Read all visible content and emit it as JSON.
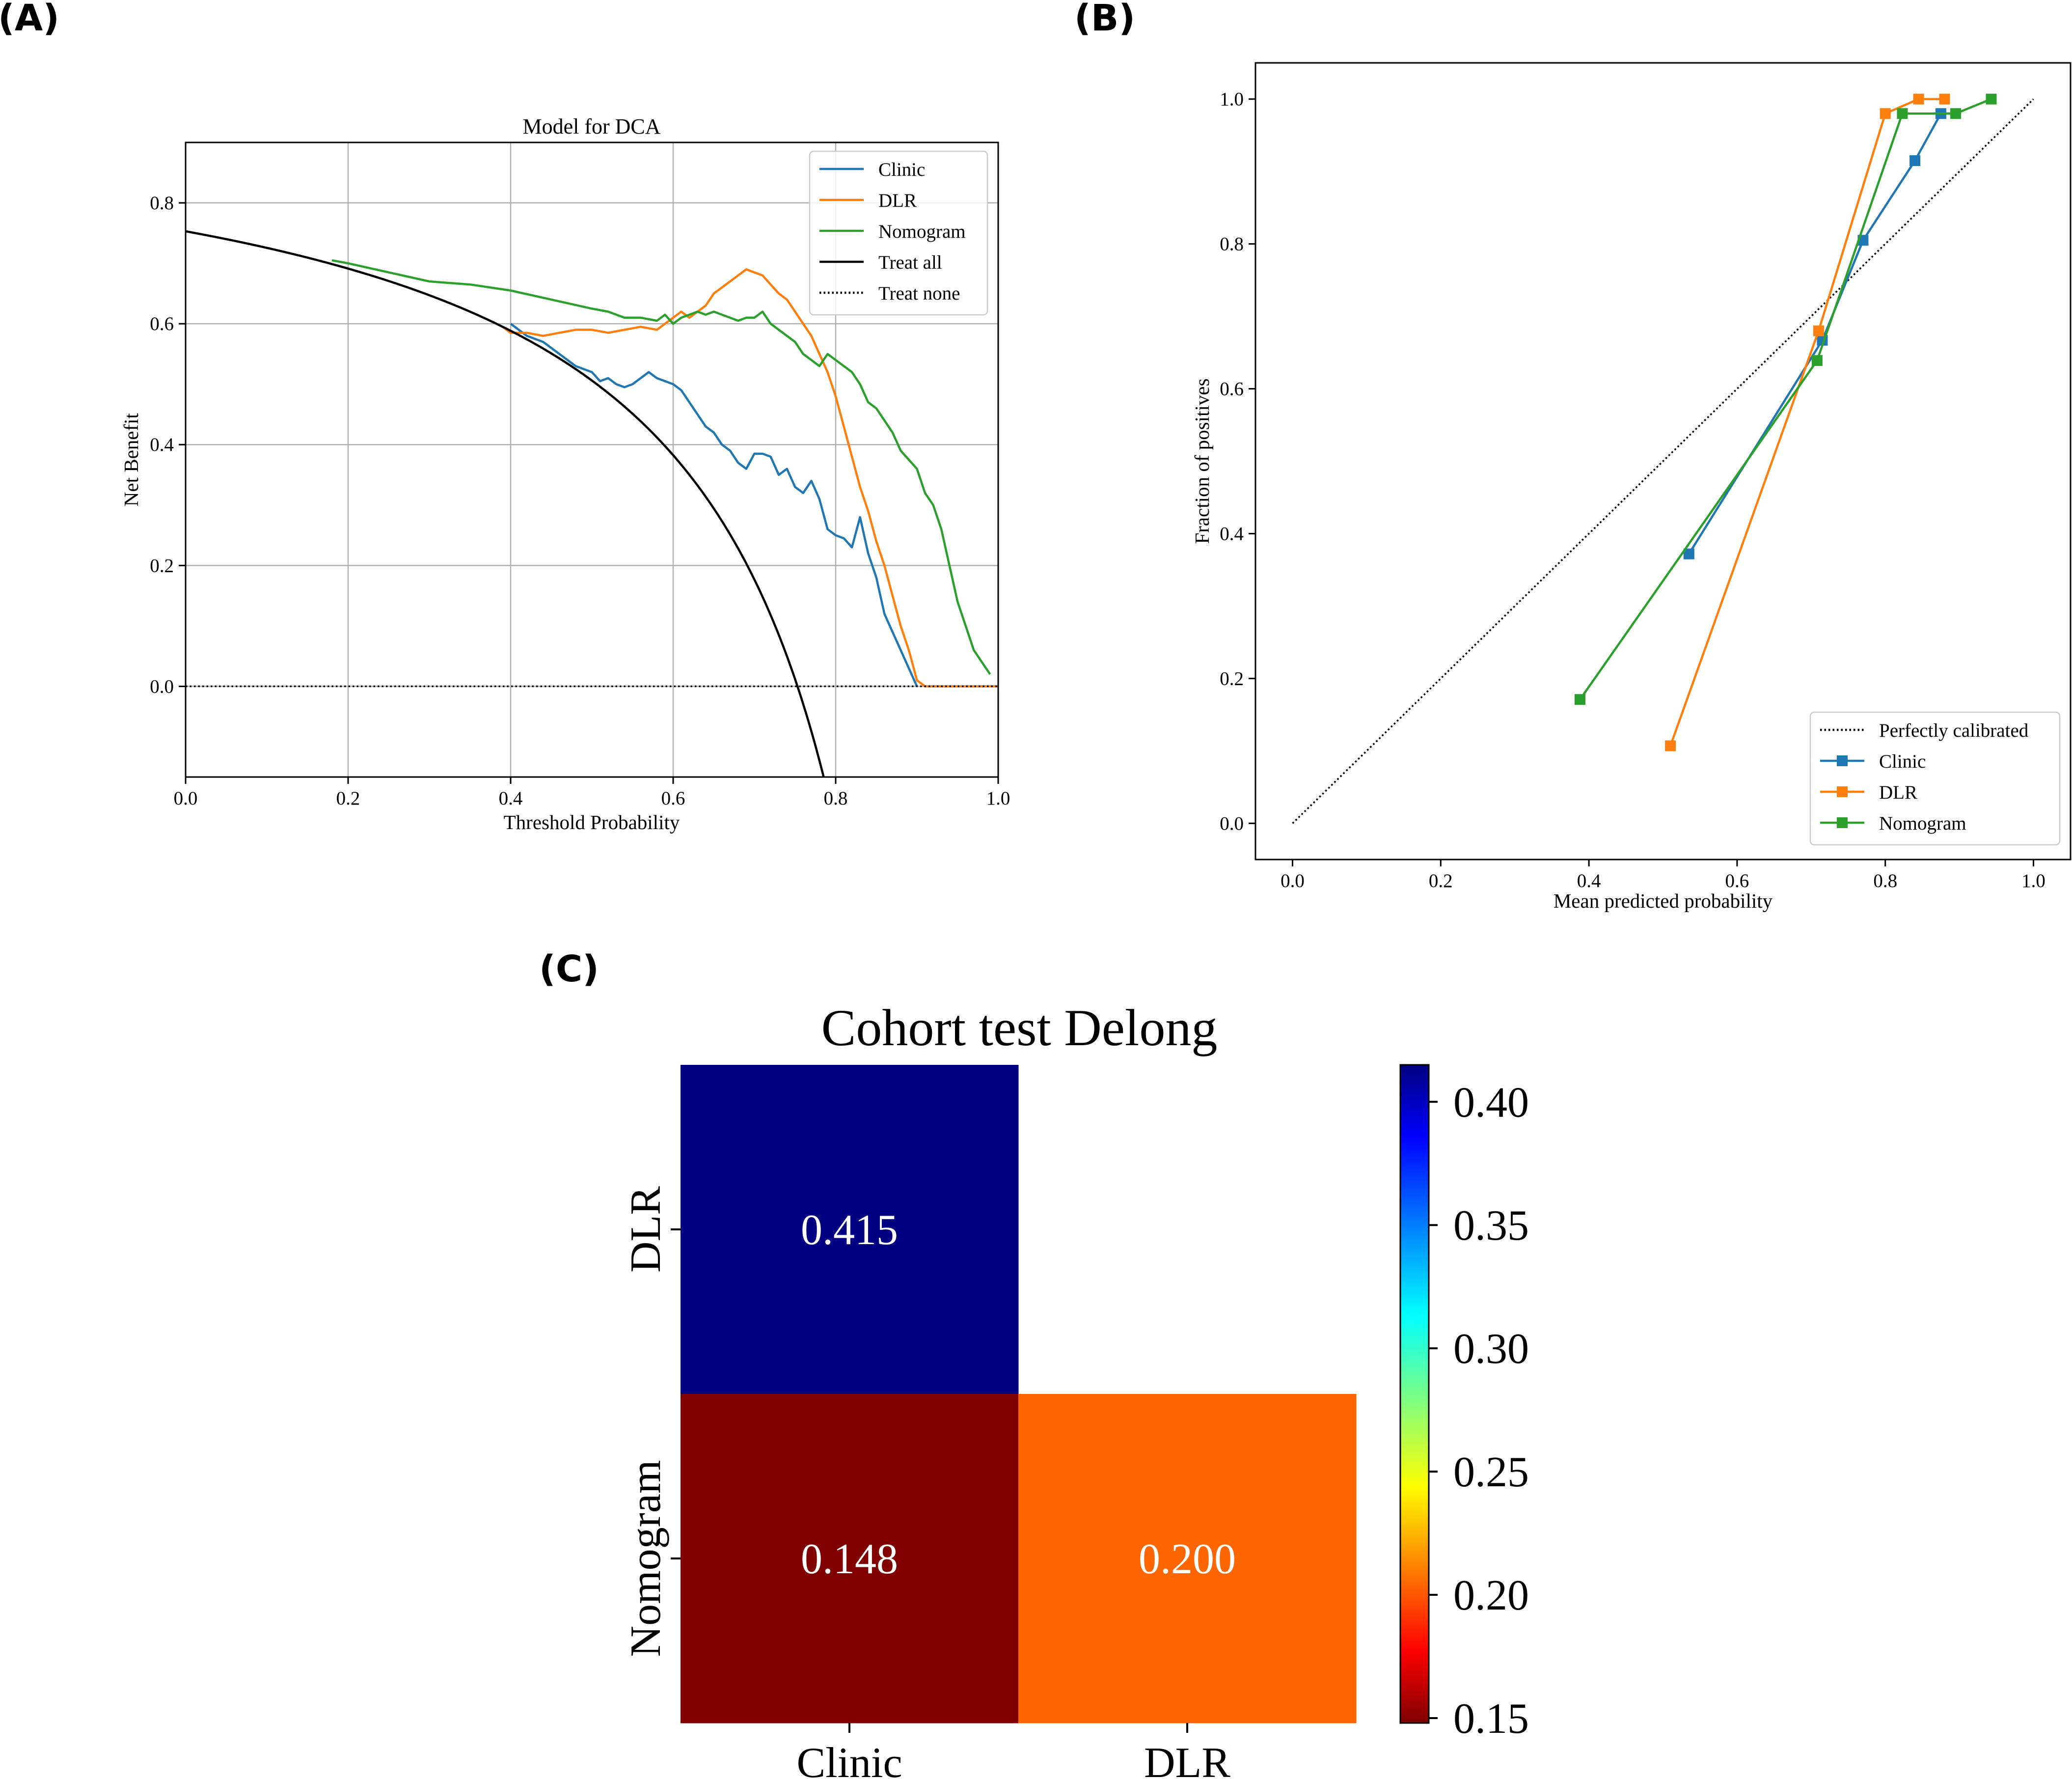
{
  "panels": {
    "a": {
      "label": "(A)"
    },
    "b": {
      "label": "(B)"
    },
    "c": {
      "label": "(C)"
    }
  },
  "chart_data": [
    {
      "id": "dca",
      "type": "line",
      "title": "Model for DCA",
      "xlabel": "Threshold Probability",
      "ylabel": "Net Benefit",
      "xlim": [
        0.0,
        1.0
      ],
      "ylim": [
        -0.15,
        0.9
      ],
      "xticks": [
        0.0,
        0.2,
        0.4,
        0.6,
        0.8,
        1.0
      ],
      "xtick_labels": [
        "0.0",
        "0.2",
        "0.4",
        "0.6",
        "0.8",
        "1.0"
      ],
      "yticks": [
        0.0,
        0.2,
        0.4,
        0.6,
        0.8
      ],
      "ytick_labels": [
        "0.0",
        "0.2",
        "0.4",
        "0.6",
        "0.8"
      ],
      "grid": true,
      "legend_position": "top-right",
      "series": [
        {
          "name": "Clinic",
          "color": "#1f77b4",
          "style": "solid",
          "x": [
            0.4,
            0.42,
            0.44,
            0.46,
            0.48,
            0.5,
            0.51,
            0.52,
            0.53,
            0.54,
            0.55,
            0.56,
            0.57,
            0.58,
            0.59,
            0.6,
            0.61,
            0.62,
            0.63,
            0.64,
            0.65,
            0.66,
            0.67,
            0.68,
            0.69,
            0.7,
            0.71,
            0.72,
            0.73,
            0.74,
            0.75,
            0.76,
            0.77,
            0.78,
            0.79,
            0.8,
            0.81,
            0.82,
            0.83,
            0.84,
            0.85,
            0.86,
            0.87,
            0.88,
            0.89,
            0.9
          ],
          "values": [
            0.6,
            0.58,
            0.57,
            0.55,
            0.53,
            0.52,
            0.505,
            0.51,
            0.5,
            0.495,
            0.5,
            0.51,
            0.52,
            0.51,
            0.505,
            0.5,
            0.49,
            0.47,
            0.45,
            0.43,
            0.42,
            0.4,
            0.39,
            0.37,
            0.36,
            0.385,
            0.385,
            0.38,
            0.35,
            0.36,
            0.33,
            0.32,
            0.34,
            0.31,
            0.26,
            0.25,
            0.245,
            0.23,
            0.28,
            0.22,
            0.18,
            0.12,
            0.09,
            0.06,
            0.03,
            0.0
          ]
        },
        {
          "name": "DLR",
          "color": "#ff7f0e",
          "style": "solid",
          "x": [
            0.39,
            0.4,
            0.42,
            0.44,
            0.46,
            0.48,
            0.5,
            0.52,
            0.54,
            0.56,
            0.58,
            0.59,
            0.6,
            0.61,
            0.62,
            0.63,
            0.64,
            0.65,
            0.66,
            0.67,
            0.68,
            0.69,
            0.7,
            0.71,
            0.72,
            0.73,
            0.74,
            0.75,
            0.76,
            0.77,
            0.78,
            0.79,
            0.8,
            0.81,
            0.82,
            0.83,
            0.84,
            0.85,
            0.86,
            0.87,
            0.88,
            0.89,
            0.9,
            0.91,
            0.92,
            0.93,
            1.0
          ],
          "values": [
            0.595,
            0.585,
            0.585,
            0.58,
            0.585,
            0.59,
            0.59,
            0.585,
            0.59,
            0.595,
            0.59,
            0.6,
            0.61,
            0.62,
            0.61,
            0.62,
            0.63,
            0.65,
            0.66,
            0.67,
            0.68,
            0.69,
            0.685,
            0.68,
            0.665,
            0.65,
            0.64,
            0.62,
            0.6,
            0.58,
            0.55,
            0.52,
            0.48,
            0.43,
            0.38,
            0.33,
            0.29,
            0.24,
            0.2,
            0.15,
            0.1,
            0.06,
            0.01,
            0.0,
            0.0,
            0.0,
            0.0
          ]
        },
        {
          "name": "Nomogram",
          "color": "#2ca02c",
          "style": "solid",
          "x": [
            0.18,
            0.2,
            0.25,
            0.3,
            0.35,
            0.4,
            0.45,
            0.5,
            0.52,
            0.54,
            0.56,
            0.58,
            0.59,
            0.6,
            0.61,
            0.62,
            0.63,
            0.64,
            0.65,
            0.66,
            0.67,
            0.68,
            0.69,
            0.7,
            0.71,
            0.72,
            0.73,
            0.74,
            0.75,
            0.76,
            0.77,
            0.78,
            0.79,
            0.8,
            0.81,
            0.82,
            0.83,
            0.84,
            0.85,
            0.86,
            0.87,
            0.88,
            0.89,
            0.9,
            0.91,
            0.92,
            0.93,
            0.94,
            0.95,
            0.96,
            0.97,
            0.98,
            0.99
          ],
          "values": [
            0.705,
            0.7,
            0.685,
            0.67,
            0.665,
            0.655,
            0.64,
            0.625,
            0.62,
            0.61,
            0.61,
            0.605,
            0.615,
            0.6,
            0.61,
            0.615,
            0.62,
            0.615,
            0.62,
            0.615,
            0.61,
            0.605,
            0.61,
            0.61,
            0.62,
            0.6,
            0.59,
            0.58,
            0.57,
            0.55,
            0.54,
            0.53,
            0.55,
            0.54,
            0.53,
            0.52,
            0.5,
            0.47,
            0.46,
            0.44,
            0.42,
            0.39,
            0.375,
            0.36,
            0.32,
            0.3,
            0.26,
            0.2,
            0.14,
            0.1,
            0.06,
            0.04,
            0.02
          ]
        },
        {
          "name": "Treat all",
          "color": "#000000",
          "style": "solid",
          "generator": "treat_all",
          "prevalence": 0.753
        },
        {
          "name": "Treat none",
          "color": "#000000",
          "style": "dotted",
          "x": [
            0.0,
            1.0
          ],
          "values": [
            0.0,
            0.0
          ]
        }
      ]
    },
    {
      "id": "calibration",
      "type": "line",
      "title": "",
      "xlabel": "Mean predicted probability",
      "ylabel": "Fraction of positives",
      "xlim": [
        -0.05,
        1.05
      ],
      "ylim": [
        -0.05,
        1.05
      ],
      "xticks": [
        0.0,
        0.2,
        0.4,
        0.6,
        0.8,
        1.0
      ],
      "xtick_labels": [
        "0.0",
        "0.2",
        "0.4",
        "0.6",
        "0.8",
        "1.0"
      ],
      "yticks": [
        0.0,
        0.2,
        0.4,
        0.6,
        0.8,
        1.0
      ],
      "ytick_labels": [
        "0.0",
        "0.2",
        "0.4",
        "0.6",
        "0.8",
        "1.0"
      ],
      "grid": false,
      "legend_position": "bottom-right",
      "series": [
        {
          "name": "Perfectly calibrated",
          "color": "#000000",
          "style": "dotted",
          "marker": "none",
          "x": [
            0.0,
            1.0
          ],
          "values": [
            0.0,
            1.0
          ]
        },
        {
          "name": "Clinic",
          "color": "#1f77b4",
          "style": "solid",
          "marker": "square",
          "x": [
            0.535,
            0.715,
            0.77,
            0.84,
            0.875
          ],
          "values": [
            0.372,
            0.667,
            0.805,
            0.915,
            0.98
          ]
        },
        {
          "name": "DLR",
          "color": "#ff7f0e",
          "style": "solid",
          "marker": "square",
          "x": [
            0.51,
            0.71,
            0.8,
            0.845,
            0.88
          ],
          "values": [
            0.107,
            0.68,
            0.98,
            1.0,
            1.0
          ]
        },
        {
          "name": "Nomogram",
          "color": "#2ca02c",
          "style": "solid",
          "marker": "square",
          "x": [
            0.388,
            0.708,
            0.823,
            0.895,
            0.943
          ],
          "values": [
            0.171,
            0.639,
            0.98,
            0.98,
            1.0
          ]
        }
      ]
    },
    {
      "id": "delong",
      "type": "heatmap",
      "title": "Cohort test Delong",
      "x_categories": [
        "Clinic",
        "DLR"
      ],
      "y_categories": [
        "DLR",
        "Nomogram"
      ],
      "cells": [
        {
          "row": 0,
          "col": 0,
          "value": 0.415,
          "label": "0.415"
        },
        {
          "row": 1,
          "col": 0,
          "value": 0.148,
          "label": "0.148"
        },
        {
          "row": 1,
          "col": 1,
          "value": 0.2,
          "label": "0.200"
        }
      ],
      "vmin": 0.148,
      "vmax": 0.415,
      "colormap": "jet",
      "cell_colors": [
        "#000080",
        "#800000",
        "#ff6600"
      ],
      "colorbar_ticks": [
        0.15,
        0.2,
        0.25,
        0.3,
        0.35,
        0.4
      ],
      "colorbar_tick_labels": [
        "0.15",
        "0.20",
        "0.25",
        "0.30",
        "0.35",
        "0.40"
      ],
      "annotation_color": "#ffffff"
    }
  ]
}
